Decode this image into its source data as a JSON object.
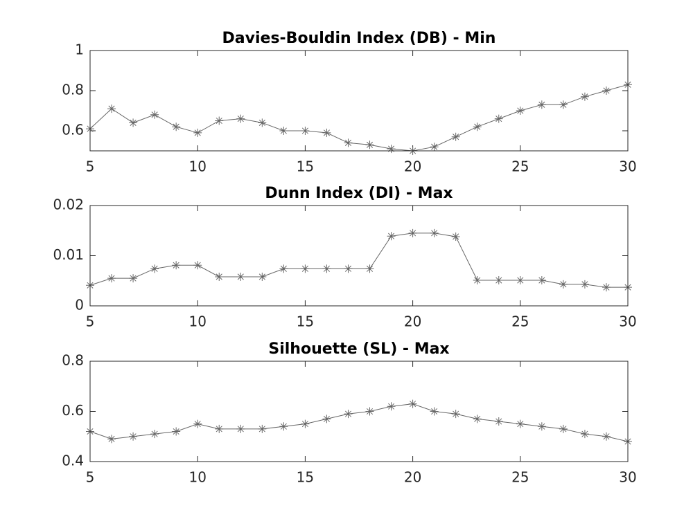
{
  "chart_data": [
    {
      "type": "line",
      "title": "Davies-Bouldin Index (DB) - Min",
      "x": [
        5,
        6,
        7,
        8,
        9,
        10,
        11,
        12,
        13,
        14,
        15,
        16,
        17,
        18,
        19,
        20,
        21,
        22,
        23,
        24,
        25,
        26,
        27,
        28,
        29,
        30
      ],
      "values": [
        0.61,
        0.71,
        0.64,
        0.68,
        0.62,
        0.59,
        0.65,
        0.66,
        0.64,
        0.6,
        0.6,
        0.59,
        0.54,
        0.53,
        0.51,
        0.5,
        0.52,
        0.57,
        0.62,
        0.66,
        0.7,
        0.73,
        0.73,
        0.77,
        0.8,
        0.83
      ],
      "color": "#666666",
      "xlim": [
        5,
        30
      ],
      "xticks": [
        5,
        10,
        15,
        20,
        25,
        30
      ],
      "ylim": [
        0.5,
        1
      ],
      "yticks": [
        0.6,
        0.8,
        1
      ]
    },
    {
      "type": "line",
      "title": "Dunn Index (DI) - Max",
      "x": [
        5,
        6,
        7,
        8,
        9,
        10,
        11,
        12,
        13,
        14,
        15,
        16,
        17,
        18,
        19,
        20,
        21,
        22,
        23,
        24,
        25,
        26,
        27,
        28,
        29,
        30
      ],
      "values": [
        0.0041,
        0.0055,
        0.0055,
        0.0074,
        0.0081,
        0.0081,
        0.0058,
        0.0058,
        0.0058,
        0.0074,
        0.0074,
        0.0074,
        0.0074,
        0.0074,
        0.0139,
        0.0145,
        0.0145,
        0.0138,
        0.0051,
        0.0051,
        0.0051,
        0.0051,
        0.0043,
        0.0043,
        0.0037,
        0.0037
      ],
      "color": "#666666",
      "xlim": [
        5,
        30
      ],
      "xticks": [
        5,
        10,
        15,
        20,
        25,
        30
      ],
      "ylim": [
        0,
        0.02
      ],
      "yticks": [
        0,
        0.01,
        0.02
      ]
    },
    {
      "type": "line",
      "title": "Silhouette (SL) - Max",
      "x": [
        5,
        6,
        7,
        8,
        9,
        10,
        11,
        12,
        13,
        14,
        15,
        16,
        17,
        18,
        19,
        20,
        21,
        22,
        23,
        24,
        25,
        26,
        27,
        28,
        29,
        30
      ],
      "values": [
        0.52,
        0.49,
        0.5,
        0.51,
        0.52,
        0.55,
        0.53,
        0.53,
        0.53,
        0.54,
        0.55,
        0.57,
        0.59,
        0.6,
        0.62,
        0.63,
        0.6,
        0.59,
        0.57,
        0.56,
        0.55,
        0.54,
        0.53,
        0.51,
        0.5,
        0.48
      ],
      "color": "#666666",
      "xlim": [
        5,
        30
      ],
      "xticks": [
        5,
        10,
        15,
        20,
        25,
        30
      ],
      "ylim": [
        0.4,
        0.8
      ],
      "yticks": [
        0.4,
        0.6,
        0.8
      ]
    }
  ]
}
